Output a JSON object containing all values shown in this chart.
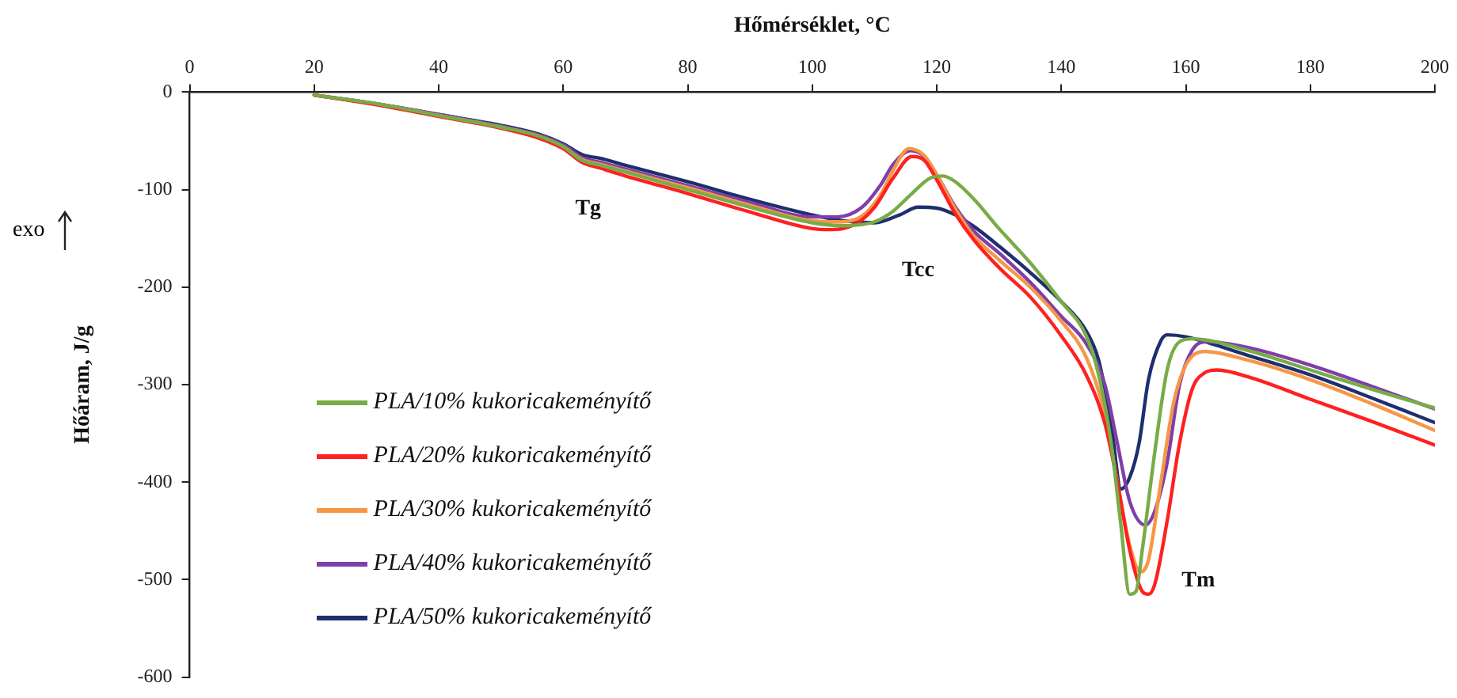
{
  "chart_data": {
    "type": "line",
    "xlabel": "Hőmérséklet, °C",
    "ylabel": "Hőáram, J/g",
    "xlim": [
      0,
      200
    ],
    "xticks": [
      0,
      20,
      40,
      60,
      80,
      100,
      120,
      140,
      160,
      180,
      200
    ],
    "ylim": [
      -600,
      0
    ],
    "yticks": [
      0,
      -100,
      -200,
      -300,
      -400,
      -500,
      -600
    ],
    "grid": false,
    "legend": "bottom left",
    "marker": "none",
    "line_style": "solid",
    "annotations": [
      "Tg",
      "Tcc",
      "Tm",
      "exo"
    ],
    "series": [
      {
        "name": "PLA/10% kukoricakeményítő",
        "color": "#77ac47",
        "x": [
          20,
          30,
          40,
          50,
          56,
          60,
          63,
          66,
          70,
          80,
          90,
          100,
          105,
          110,
          113,
          116,
          119,
          121,
          123,
          126,
          130,
          135,
          140,
          144,
          146,
          148,
          149.5,
          151,
          152,
          153,
          155,
          157,
          159,
          161,
          170,
          180,
          190,
          200
        ],
        "values": [
          -3,
          -12,
          -24,
          -36,
          -45,
          -56,
          -70,
          -75,
          -82,
          -100,
          -118,
          -134,
          -137,
          -133,
          -122,
          -104,
          -88,
          -86,
          -92,
          -110,
          -140,
          -175,
          -215,
          -250,
          -290,
          -360,
          -440,
          -515,
          -512,
          -470,
          -370,
          -285,
          -256,
          -253,
          -265,
          -285,
          -305,
          -324
        ]
      },
      {
        "name": "PLA/20% kukoricakeményítő",
        "color": "#ff2020",
        "x": [
          20,
          30,
          40,
          50,
          56,
          60,
          63,
          66,
          70,
          80,
          90,
          100,
          103,
          107,
          110,
          113,
          116,
          118,
          120,
          123,
          126,
          130,
          135,
          140,
          144,
          147,
          149,
          151,
          153,
          154,
          155,
          157,
          159,
          161,
          163,
          165,
          170,
          180,
          190,
          200
        ],
        "values": [
          -3,
          -13,
          -25,
          -37,
          -47,
          -58,
          -72,
          -78,
          -86,
          -104,
          -123,
          -140,
          -141,
          -135,
          -118,
          -88,
          -66,
          -70,
          -90,
          -125,
          -152,
          -180,
          -210,
          -250,
          -290,
          -340,
          -400,
          -470,
          -512,
          -515,
          -505,
          -440,
          -360,
          -305,
          -288,
          -285,
          -292,
          -315,
          -338,
          -362
        ]
      },
      {
        "name": "PLA/30% kukoricakeményítő",
        "color": "#f79646",
        "x": [
          20,
          30,
          40,
          50,
          56,
          60,
          63,
          66,
          70,
          80,
          90,
          100,
          104,
          108,
          111,
          113,
          115.5,
          118,
          120,
          123,
          126,
          130,
          135,
          140,
          144,
          147,
          149,
          151,
          152.7,
          154,
          156,
          158,
          160,
          163,
          170,
          180,
          190,
          200
        ],
        "values": [
          -3,
          -12,
          -24,
          -36,
          -45,
          -56,
          -69,
          -74,
          -81,
          -98,
          -116,
          -132,
          -133,
          -127,
          -105,
          -80,
          -58,
          -65,
          -85,
          -120,
          -148,
          -172,
          -200,
          -235,
          -272,
          -330,
          -400,
          -465,
          -492,
          -480,
          -400,
          -320,
          -280,
          -266,
          -275,
          -295,
          -320,
          -347
        ]
      },
      {
        "name": "PLA/40% kukoricakeményítő",
        "color": "#7f3fa8",
        "x": [
          20,
          30,
          40,
          50,
          56,
          60,
          63,
          66,
          70,
          80,
          90,
          100,
          104,
          108,
          111,
          113,
          115.8,
          118,
          120,
          123,
          126,
          130,
          135,
          140,
          144,
          147,
          149,
          151,
          153.5,
          155,
          157,
          159,
          161,
          163.3,
          170,
          180,
          190,
          200
        ],
        "values": [
          -3,
          -12,
          -23,
          -35,
          -44,
          -54,
          -67,
          -72,
          -79,
          -96,
          -113,
          -128,
          -128,
          -118,
          -95,
          -74,
          -60,
          -66,
          -85,
          -118,
          -143,
          -165,
          -195,
          -230,
          -258,
          -300,
          -360,
          -420,
          -444,
          -430,
          -380,
          -300,
          -265,
          -256,
          -262,
          -280,
          -302,
          -325
        ]
      },
      {
        "name": "PLA/50% kukoricakeményítő",
        "color": "#1f2f6e",
        "x": [
          20,
          30,
          40,
          50,
          56,
          60,
          63,
          66,
          70,
          80,
          90,
          100,
          105,
          110,
          114,
          117,
          120,
          123,
          126,
          130,
          135,
          140,
          144,
          146,
          148,
          149.6,
          151,
          152.5,
          154,
          156,
          157,
          160,
          170,
          180,
          190,
          200
        ],
        "values": [
          -3,
          -12,
          -23,
          -34,
          -43,
          -53,
          -64,
          -68,
          -75,
          -92,
          -110,
          -126,
          -132,
          -134,
          -126,
          -118,
          -119,
          -126,
          -138,
          -158,
          -185,
          -215,
          -245,
          -275,
          -340,
          -407,
          -395,
          -360,
          -295,
          -255,
          -249,
          -251,
          -270,
          -290,
          -314,
          -339
        ]
      }
    ]
  }
}
